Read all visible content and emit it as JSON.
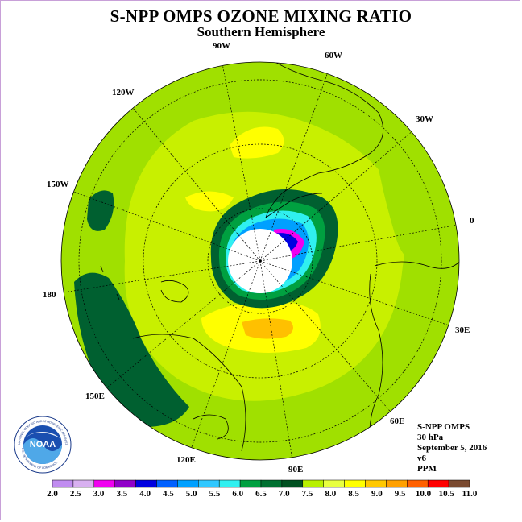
{
  "header": {
    "title": "S-NPP OMPS OZONE MIXING RATIO",
    "subtitle": "Southern Hemisphere"
  },
  "longitude_labels": [
    "90W",
    "60W",
    "30W",
    "0",
    "30E",
    "60E",
    "90E",
    "120E",
    "150E",
    "180",
    "150W",
    "120W"
  ],
  "info": {
    "instrument": "S-NPP OMPS",
    "level": "30 hPa",
    "date": "September 5, 2016",
    "version": "v6",
    "units": "PPM"
  },
  "colorbar": {
    "labels": [
      "2.0",
      "2.5",
      "3.0",
      "3.5",
      "4.0",
      "4.5",
      "5.0",
      "5.5",
      "6.0",
      "6.5",
      "7.0",
      "7.5",
      "8.0",
      "8.5",
      "9.0",
      "9.5",
      "10.0",
      "10.5",
      "11.0"
    ],
    "colors": [
      "#c08cf0",
      "#d8b0f0",
      "#f000f0",
      "#9000c8",
      "#0000e0",
      "#0060ff",
      "#00a0ff",
      "#30c8ff",
      "#30f0f0",
      "#00a040",
      "#007030",
      "#005020",
      "#b8f000",
      "#e8ff40",
      "#ffff00",
      "#ffc800",
      "#ffa000",
      "#ff6000",
      "#ff0000",
      "#7a4a30"
    ]
  },
  "logo": {
    "text": "NOAA",
    "ring_text": "NATIONAL OCEANIC AND ATMOSPHERIC ADMINISTRATION",
    "ring_text_bottom": "U.S. DEPARTMENT OF COMMERCE"
  },
  "colors": {
    "background_field": "#c8f000",
    "light_green": "#a0e000",
    "dark_green": "#006030",
    "yellow": "#ffff00",
    "orange": "#ffc000",
    "frame": "#c8a0d8"
  }
}
